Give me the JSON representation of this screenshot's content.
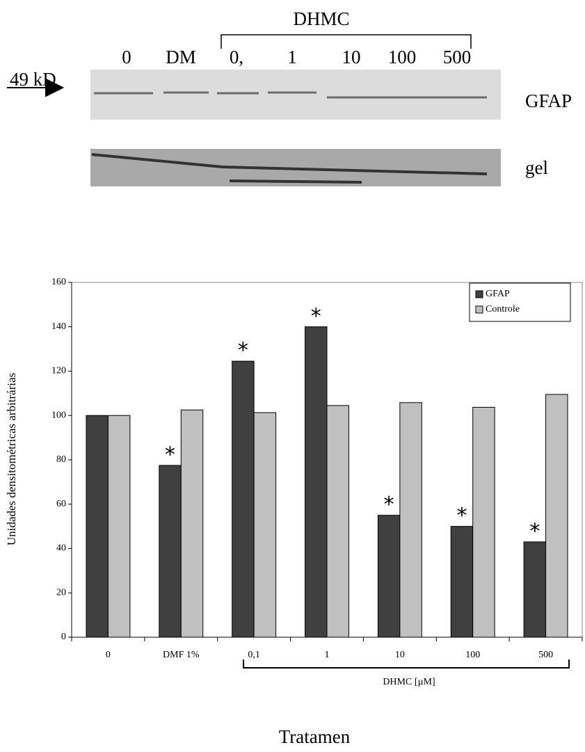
{
  "blot": {
    "group_label": "DHMC",
    "lanes": [
      "0",
      "DM",
      "0,",
      "1",
      "10",
      "100",
      "500"
    ],
    "marker": "49 kD",
    "rows": [
      "GFAP",
      "gel"
    ]
  },
  "chart_data": {
    "type": "bar",
    "y_label": "Unidades densitométricas arbitrárias",
    "x_label": "Tratamen",
    "group_label": "DHMC [µM]",
    "categories": [
      "0",
      "DMF 1%",
      "0,1",
      "1",
      "10",
      "100",
      "500"
    ],
    "series": [
      {
        "name": "GFAP",
        "color": "#404040",
        "values": [
          100,
          77.5,
          124.5,
          140,
          55,
          50,
          43
        ]
      },
      {
        "name": "Controle",
        "color": "#c0c0c0",
        "values": [
          100,
          102.5,
          101.3,
          104.5,
          105.8,
          103.7,
          109.5
        ]
      }
    ],
    "markers": [
      null,
      "*",
      "*",
      "*",
      "*",
      "*",
      "*"
    ],
    "ylim": [
      0,
      160
    ],
    "yticks": [
      0,
      20,
      40,
      60,
      80,
      100,
      120,
      140,
      160
    ],
    "legend": "top-right"
  }
}
